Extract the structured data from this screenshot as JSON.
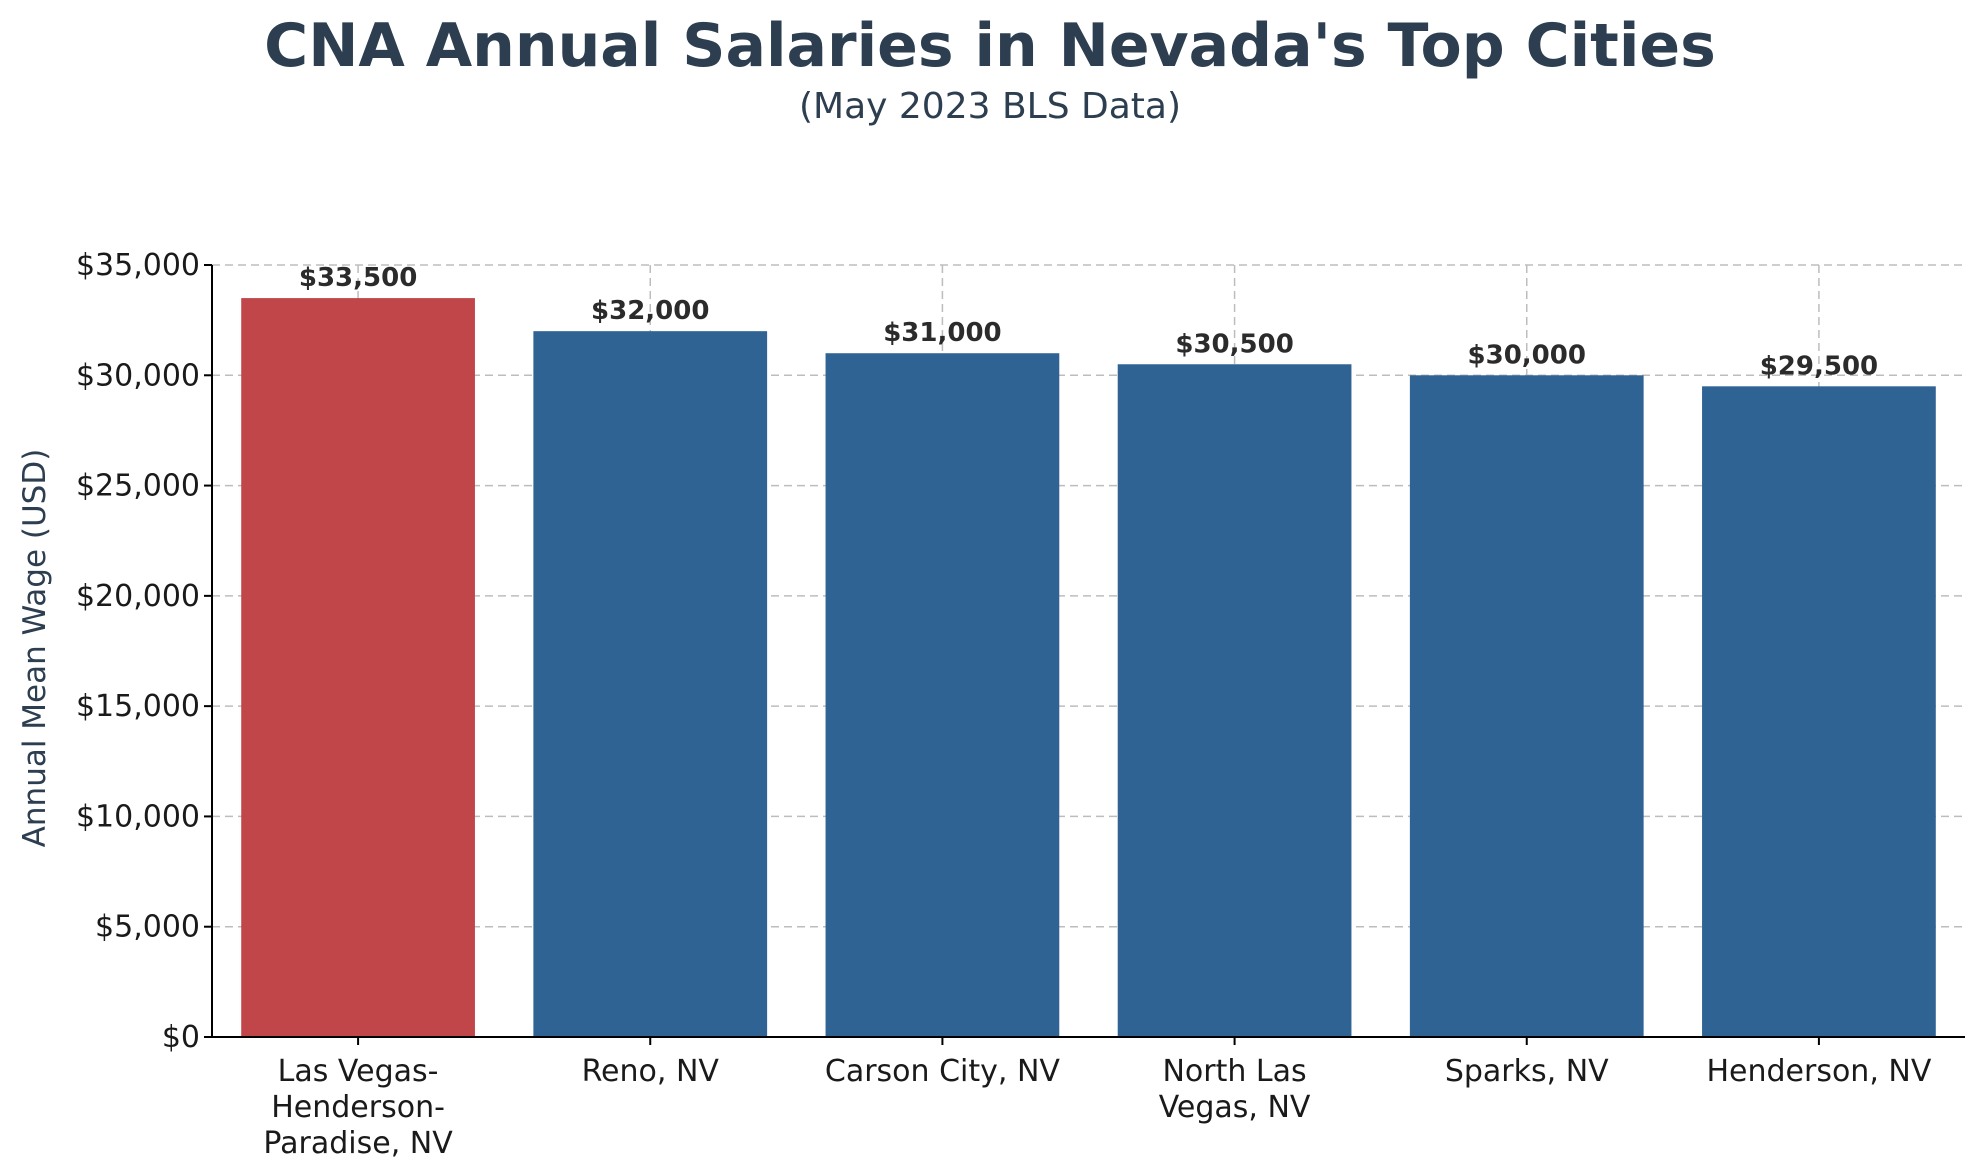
{
  "chart_data": {
    "type": "bar",
    "title": "CNA Annual Salaries in Nevada's Top Cities",
    "subtitle": "(May 2023 BLS Data)",
    "xlabel": "",
    "ylabel": "Annual Mean Wage (USD)",
    "ylim": [
      0,
      35000
    ],
    "yticks": [
      0,
      5000,
      10000,
      15000,
      20000,
      25000,
      30000,
      35000
    ],
    "ytick_labels": [
      "$0",
      "$5,000",
      "$10,000",
      "$15,000",
      "$20,000",
      "$25,000",
      "$30,000",
      "$35,000"
    ],
    "grid": true,
    "categories": [
      [
        "Las Vegas-",
        "Henderson-",
        "Paradise, NV"
      ],
      [
        "Reno, NV"
      ],
      [
        "Carson City, NV"
      ],
      [
        "North Las",
        "Vegas, NV"
      ],
      [
        "Sparks, NV"
      ],
      [
        "Henderson, NV"
      ]
    ],
    "values": [
      33500,
      32000,
      31000,
      30500,
      30000,
      29500
    ],
    "value_labels": [
      "$33,500",
      "$32,000",
      "$31,000",
      "$30,500",
      "$30,000",
      "$29,500"
    ],
    "colors": [
      "#c0464a",
      "#2f6393",
      "#2f6393",
      "#2f6393",
      "#2f6393",
      "#2f6393"
    ],
    "highlight_color": "#c0464a",
    "bar_color": "#2f6393"
  }
}
